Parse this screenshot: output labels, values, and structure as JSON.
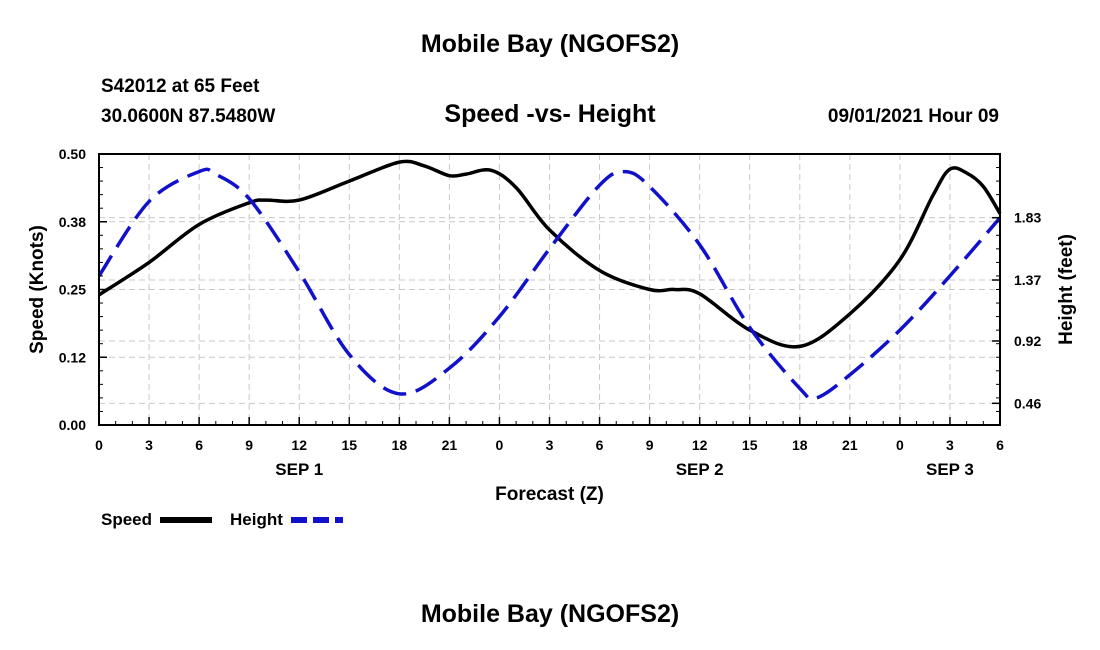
{
  "header": {
    "top_title": "Mobile Bay (NGOFS2)",
    "station": "S42012 at 65 Feet",
    "coords": "30.0600N  87.5480W",
    "subtitle": "Speed -vs- Height",
    "datetime": "09/01/2021 Hour 09"
  },
  "footer": {
    "bottom_title": "Mobile Bay (NGOFS2)"
  },
  "chart_data": {
    "type": "line",
    "title": "Speed -vs- Height",
    "xlabel": "Forecast (Z)",
    "x_unit": "hours from 0Z SEP 1",
    "xlim": [
      0,
      54
    ],
    "x_ticks": [
      {
        "x": 0,
        "label": "0"
      },
      {
        "x": 3,
        "label": "3"
      },
      {
        "x": 6,
        "label": "6"
      },
      {
        "x": 9,
        "label": "9"
      },
      {
        "x": 12,
        "label": "12"
      },
      {
        "x": 15,
        "label": "15"
      },
      {
        "x": 18,
        "label": "18"
      },
      {
        "x": 21,
        "label": "21"
      },
      {
        "x": 24,
        "label": "0"
      },
      {
        "x": 27,
        "label": "3"
      },
      {
        "x": 30,
        "label": "6"
      },
      {
        "x": 33,
        "label": "9"
      },
      {
        "x": 36,
        "label": "12"
      },
      {
        "x": 39,
        "label": "15"
      },
      {
        "x": 42,
        "label": "18"
      },
      {
        "x": 45,
        "label": "21"
      },
      {
        "x": 48,
        "label": "0"
      },
      {
        "x": 51,
        "label": "3"
      },
      {
        "x": 54,
        "label": "6"
      }
    ],
    "date_labels": [
      {
        "x": 12,
        "label": "SEP 1"
      },
      {
        "x": 36,
        "label": "SEP 2"
      },
      {
        "x": 51,
        "label": "SEP 3"
      }
    ],
    "y_left": {
      "label": "Speed (Knots)",
      "lim": [
        0,
        0.5
      ],
      "ticks": [
        {
          "v": 0,
          "label": "0.00"
        },
        {
          "v": 0.125,
          "label": "0.12"
        },
        {
          "v": 0.25,
          "label": "0.25"
        },
        {
          "v": 0.375,
          "label": "0.38"
        },
        {
          "v": 0.5,
          "label": "0.50"
        }
      ]
    },
    "y_right": {
      "label": "Height (feet)",
      "lim": [
        0.3,
        2.3
      ],
      "ticks": [
        {
          "v": 0.46,
          "label": "0.46"
        },
        {
          "v": 0.92,
          "label": "0.92"
        },
        {
          "v": 1.37,
          "label": "1.37"
        },
        {
          "v": 1.83,
          "label": "1.83"
        }
      ]
    },
    "grid": true,
    "legend_position": "bottom-left",
    "series": [
      {
        "name": "Speed",
        "axis": "left",
        "color": "#000000",
        "dash": "solid",
        "x": [
          0,
          3,
          6,
          9,
          10,
          12,
          15,
          18,
          19.5,
          21,
          22,
          23.5,
          25,
          27,
          30,
          33,
          34.5,
          36,
          39,
          42,
          45,
          48,
          50,
          51,
          52,
          53,
          54
        ],
        "y": [
          0.24,
          0.3,
          0.37,
          0.41,
          0.415,
          0.415,
          0.45,
          0.485,
          0.478,
          0.46,
          0.463,
          0.47,
          0.438,
          0.36,
          0.285,
          0.25,
          0.25,
          0.242,
          0.175,
          0.145,
          0.205,
          0.305,
          0.425,
          0.472,
          0.465,
          0.44,
          0.39
        ]
      },
      {
        "name": "Height",
        "axis": "right",
        "color": "#1111cc",
        "dash": "dashed",
        "x": [
          0,
          3,
          6,
          7,
          9,
          12,
          15,
          18,
          21,
          24,
          27,
          30,
          31.5,
          33,
          36,
          39,
          42,
          43,
          45,
          48,
          51,
          54
        ],
        "y": [
          1.4,
          1.95,
          2.17,
          2.15,
          1.97,
          1.43,
          0.82,
          0.53,
          0.72,
          1.1,
          1.6,
          2.07,
          2.17,
          2.06,
          1.63,
          1.02,
          0.57,
          0.5,
          0.67,
          1.0,
          1.4,
          1.83
        ]
      }
    ]
  }
}
